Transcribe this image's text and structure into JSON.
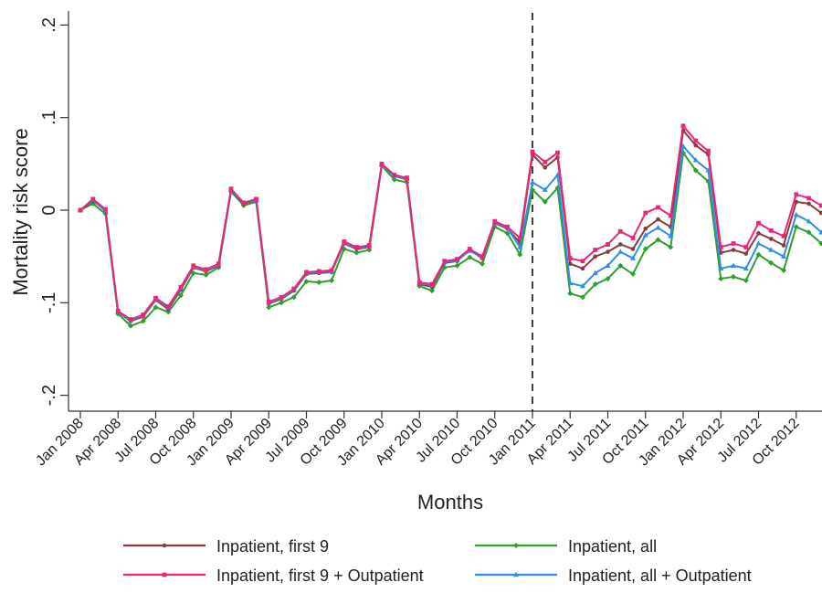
{
  "chart_data": {
    "type": "line",
    "title": "",
    "xlabel": "Months",
    "ylabel": "Mortality risk score",
    "ylim": [
      -0.2,
      0.2
    ],
    "yticks": [
      {
        "value": 0.2,
        "label": ".2"
      },
      {
        "value": 0.1,
        "label": ".1"
      },
      {
        "value": 0,
        "label": "0"
      },
      {
        "value": -0.1,
        "label": "-.1"
      },
      {
        "value": -0.2,
        "label": "-.2"
      }
    ],
    "xticks": [
      "Jan 2008",
      "Apr 2008",
      "Jul 2008",
      "Oct 2008",
      "Jan 2009",
      "Apr 2009",
      "Jul 2009",
      "Oct 2009",
      "Jan 2010",
      "Apr 2010",
      "Jul 2010",
      "Oct 2010",
      "Jan 2011",
      "Apr 2011",
      "Jul 2011",
      "Oct 2011",
      "Jan 2012",
      "Apr 2012",
      "Jul 2012",
      "Oct 2012"
    ],
    "x_start": "Jan 2008",
    "x_end": "Dec 2012",
    "vertical_line": "Jan 2011",
    "grid": false,
    "legend_position": "bottom",
    "series": [
      {
        "name": "Inpatient, first 9",
        "color": "#8c3a3a",
        "marker": "circle",
        "values": [
          0,
          0.01,
          0,
          -0.11,
          -0.12,
          -0.115,
          -0.097,
          -0.107,
          -0.086,
          -0.062,
          -0.066,
          -0.06,
          0.022,
          0.007,
          0.011,
          -0.101,
          -0.096,
          -0.087,
          -0.069,
          -0.068,
          -0.067,
          -0.036,
          -0.042,
          -0.04,
          0.049,
          0.037,
          0.033,
          -0.08,
          -0.083,
          -0.057,
          -0.055,
          -0.043,
          -0.052,
          -0.014,
          -0.02,
          -0.035,
          0.06,
          0.046,
          0.057,
          -0.058,
          -0.063,
          -0.05,
          -0.045,
          -0.037,
          -0.042,
          -0.02,
          -0.01,
          -0.018,
          0.086,
          0.07,
          0.06,
          -0.046,
          -0.043,
          -0.047,
          -0.025,
          -0.031,
          -0.038,
          0.009,
          0.007,
          -0.003
        ]
      },
      {
        "name": "Inpatient, all",
        "color": "#2e9e2e",
        "marker": "diamond",
        "values": [
          0,
          0.007,
          -0.004,
          -0.112,
          -0.125,
          -0.12,
          -0.105,
          -0.11,
          -0.092,
          -0.068,
          -0.07,
          -0.062,
          0.02,
          0.005,
          0.009,
          -0.105,
          -0.1,
          -0.094,
          -0.077,
          -0.078,
          -0.076,
          -0.042,
          -0.046,
          -0.043,
          0.048,
          0.033,
          0.03,
          -0.082,
          -0.087,
          -0.062,
          -0.06,
          -0.051,
          -0.058,
          -0.018,
          -0.025,
          -0.048,
          0.022,
          0.009,
          0.024,
          -0.09,
          -0.094,
          -0.08,
          -0.074,
          -0.06,
          -0.069,
          -0.042,
          -0.032,
          -0.04,
          0.062,
          0.043,
          0.031,
          -0.074,
          -0.072,
          -0.076,
          -0.048,
          -0.057,
          -0.065,
          -0.018,
          -0.024,
          -0.036
        ]
      },
      {
        "name": "Inpatient, first 9 + Outpatient",
        "color": "#e8267a",
        "marker": "square",
        "values": [
          0,
          0.012,
          0.001,
          -0.109,
          -0.118,
          -0.113,
          -0.095,
          -0.104,
          -0.083,
          -0.06,
          -0.064,
          -0.058,
          0.023,
          0.008,
          0.012,
          -0.099,
          -0.094,
          -0.085,
          -0.067,
          -0.066,
          -0.065,
          -0.034,
          -0.04,
          -0.038,
          0.05,
          0.038,
          0.035,
          -0.078,
          -0.08,
          -0.055,
          -0.053,
          -0.042,
          -0.05,
          -0.012,
          -0.018,
          -0.03,
          0.063,
          0.052,
          0.062,
          -0.052,
          -0.055,
          -0.043,
          -0.037,
          -0.023,
          -0.03,
          -0.003,
          0.003,
          -0.006,
          0.091,
          0.075,
          0.064,
          -0.04,
          -0.036,
          -0.04,
          -0.014,
          -0.022,
          -0.028,
          0.017,
          0.013,
          0.005
        ]
      },
      {
        "name": "Inpatient, all + Outpatient",
        "color": "#2f8fe8",
        "marker": "triangle",
        "values": [
          0,
          0.011,
          -0.001,
          -0.11,
          -0.119,
          -0.114,
          -0.096,
          -0.105,
          -0.084,
          -0.061,
          -0.065,
          -0.059,
          0.022,
          0.008,
          0.011,
          -0.1,
          -0.095,
          -0.086,
          -0.068,
          -0.067,
          -0.066,
          -0.035,
          -0.041,
          -0.039,
          0.049,
          0.037,
          0.034,
          -0.079,
          -0.081,
          -0.056,
          -0.054,
          -0.044,
          -0.051,
          -0.013,
          -0.019,
          -0.04,
          0.03,
          0.022,
          0.038,
          -0.079,
          -0.082,
          -0.068,
          -0.06,
          -0.045,
          -0.052,
          -0.027,
          -0.019,
          -0.028,
          0.069,
          0.054,
          0.043,
          -0.063,
          -0.06,
          -0.063,
          -0.036,
          -0.043,
          -0.05,
          -0.005,
          -0.012,
          -0.024
        ]
      }
    ],
    "legend_order": [
      0,
      1,
      2,
      3
    ]
  }
}
